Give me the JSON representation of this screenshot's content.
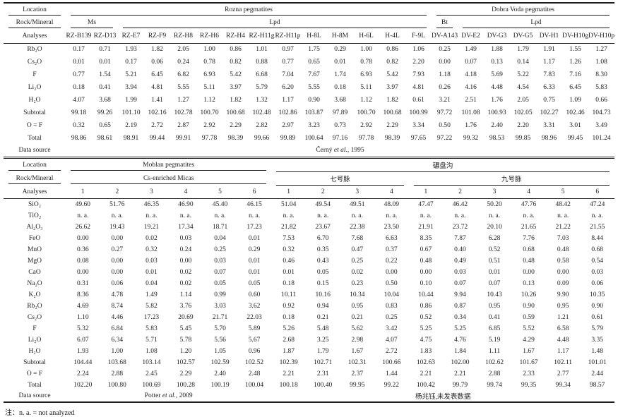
{
  "note": "注：n. a. = not analyzed",
  "table1": {
    "labels": {
      "location": "Location",
      "rock_mineral": "Rock/Mineral",
      "analyses": "Analyses"
    },
    "groups1": [
      {
        "label": "Rozna pegmatites",
        "span": 14
      },
      {
        "label": "Dobra Voda pegmatites",
        "span": 7
      }
    ],
    "groups2": [
      {
        "label": "Ms",
        "span": 2
      },
      {
        "label": "Lpd",
        "span": 12
      },
      {
        "label": "Bt",
        "span": 1
      },
      {
        "label": "Lpd",
        "span": 6
      }
    ],
    "columns": [
      "RZ-B139",
      "RZ-D13",
      "RZ-E7",
      "RZ-F9",
      "RZ-H8",
      "RZ-H6",
      "RZ-H4",
      "RZ-H11g",
      "RZ-H11p",
      "H-8L",
      "H-8M",
      "H-6L",
      "H-4L",
      "F-9L",
      "DV-A143",
      "DV-E2",
      "DV-G3",
      "DV-G5",
      "DV-H1",
      "DV-H10g",
      "DV-H10p"
    ],
    "rows": [
      {
        "label": "Rb₂O",
        "values": [
          "0.17",
          "0.71",
          "1.93",
          "1.82",
          "2.05",
          "1.00",
          "0.86",
          "1.01",
          "0.97",
          "1.75",
          "0.29",
          "1.00",
          "0.86",
          "1.06",
          "0.25",
          "1.49",
          "1.88",
          "1.79",
          "1.91",
          "1.55",
          "1.27"
        ]
      },
      {
        "label": "Cs₂O",
        "values": [
          "0.01",
          "0.01",
          "0.17",
          "0.06",
          "0.24",
          "0.78",
          "0.82",
          "0.88",
          "0.77",
          "0.65",
          "0.01",
          "0.78",
          "0.82",
          "2.20",
          "0.00",
          "0.07",
          "0.13",
          "0.14",
          "1.17",
          "1.26",
          "1.08"
        ]
      },
      {
        "label": "F",
        "values": [
          "0.77",
          "1.54",
          "5.21",
          "6.45",
          "6.82",
          "6.93",
          "5.42",
          "6.68",
          "7.04",
          "7.67",
          "1.74",
          "6.93",
          "5.42",
          "7.93",
          "1.18",
          "4.18",
          "5.69",
          "5.22",
          "7.83",
          "7.16",
          "8.30"
        ]
      },
      {
        "label": "Li₂O",
        "values": [
          "0.18",
          "0.41",
          "3.94",
          "4.81",
          "5.55",
          "5.11",
          "3.97",
          "5.79",
          "6.20",
          "5.55",
          "0.18",
          "5.11",
          "3.97",
          "4.81",
          "0.26",
          "4.16",
          "4.48",
          "4.54",
          "6.33",
          "6.45",
          "5.83"
        ]
      },
      {
        "label": "H₂O",
        "values": [
          "4.07",
          "3.68",
          "1.99",
          "1.41",
          "1.27",
          "1.12",
          "1.82",
          "1.32",
          "1.17",
          "0.90",
          "3.68",
          "1.12",
          "1.82",
          "0.61",
          "3.21",
          "2.51",
          "1.76",
          "2.05",
          "0.75",
          "1.09",
          "0.66"
        ]
      },
      {
        "label": "Subtotal",
        "values": [
          "99.18",
          "99.26",
          "101.10",
          "102.16",
          "102.78",
          "100.70",
          "100.68",
          "102.48",
          "102.86",
          "103.87",
          "97.89",
          "100.70",
          "100.68",
          "100.99",
          "97.72",
          "101.08",
          "100.93",
          "102.05",
          "102.27",
          "102.46",
          "104.73"
        ]
      },
      {
        "label": "O = F",
        "values": [
          "0.32",
          "0.65",
          "2.19",
          "2.72",
          "2.87",
          "2.92",
          "2.29",
          "2.82",
          "2.97",
          "3.23",
          "0.73",
          "2.92",
          "2.29",
          "3.34",
          "0.50",
          "1.76",
          "2.40",
          "2.20",
          "3.31",
          "3.01",
          "3.49"
        ]
      },
      {
        "label": "Total",
        "values": [
          "98.86",
          "98.61",
          "98.91",
          "99.44",
          "99.91",
          "97.78",
          "98.39",
          "99.66",
          "99.89",
          "100.64",
          "97.16",
          "97.78",
          "98.39",
          "97.65",
          "97.22",
          "99.32",
          "98.53",
          "99.85",
          "98.96",
          "99.45",
          "101.24"
        ]
      }
    ],
    "data_source": {
      "label": "Data source",
      "entries": [
        {
          "span": 21,
          "pre": "Černý ",
          "italic": "et al.",
          "post": ", 1995"
        }
      ]
    }
  },
  "table2": {
    "labels": {
      "location": "Location",
      "rock_mineral": "Rock/Mineral",
      "analyses": "Analyses"
    },
    "groups1": [
      {
        "label": "Moblan pegmatites",
        "span": 6
      },
      {
        "label": "碾盘沟",
        "span": 10
      }
    ],
    "groups2": [
      {
        "label": "Cs-enriched Micas",
        "span": 6
      },
      {
        "label": "七号脉",
        "span": 4
      },
      {
        "label": "九号脉",
        "span": 6
      }
    ],
    "columns": [
      "1",
      "2",
      "3",
      "4",
      "5",
      "6",
      "1",
      "2",
      "3",
      "4",
      "1",
      "2",
      "3",
      "4",
      "5",
      "6"
    ],
    "rows": [
      {
        "label": "SiO₂",
        "values": [
          "49.60",
          "51.76",
          "46.35",
          "46.90",
          "45.40",
          "46.15",
          "51.04",
          "49.54",
          "49.51",
          "48.09",
          "47.47",
          "46.42",
          "50.20",
          "47.76",
          "48.42",
          "47.24"
        ]
      },
      {
        "label": "TiO₂",
        "values": [
          "n. a.",
          "n. a.",
          "n. a.",
          "n. a.",
          "n. a.",
          "n. a.",
          "n. a.",
          "n. a.",
          "n. a.",
          "n. a.",
          "n. a.",
          "n. a.",
          "n. a.",
          "n. a.",
          "n. a.",
          "n. a."
        ]
      },
      {
        "label": "Al₂O₃",
        "values": [
          "26.62",
          "19.43",
          "19.21",
          "17.34",
          "18.71",
          "17.23",
          "21.82",
          "23.67",
          "22.38",
          "23.50",
          "21.91",
          "23.72",
          "20.10",
          "21.65",
          "21.22",
          "21.55"
        ]
      },
      {
        "label": "FeO",
        "values": [
          "0.00",
          "0.00",
          "0.02",
          "0.03",
          "0.04",
          "0.01",
          "7.53",
          "6.70",
          "7.68",
          "6.63",
          "8.35",
          "7.87",
          "6.28",
          "7.76",
          "7.03",
          "8.44"
        ]
      },
      {
        "label": "MnO",
        "values": [
          "0.36",
          "0.27",
          "0.32",
          "0.24",
          "0.25",
          "0.29",
          "0.32",
          "0.35",
          "0.47",
          "0.37",
          "0.67",
          "0.40",
          "0.52",
          "0.68",
          "0.48",
          "0.68"
        ]
      },
      {
        "label": "MgO",
        "values": [
          "0.08",
          "0.00",
          "0.03",
          "0.00",
          "0.03",
          "0.01",
          "0.46",
          "0.43",
          "0.25",
          "0.22",
          "0.48",
          "0.49",
          "0.51",
          "0.48",
          "0.58",
          "0.54"
        ]
      },
      {
        "label": "CaO",
        "values": [
          "0.00",
          "0.00",
          "0.01",
          "0.02",
          "0.07",
          "0.01",
          "0.01",
          "0.05",
          "0.02",
          "0.00",
          "0.00",
          "0.03",
          "0.01",
          "0.00",
          "0.00",
          "0.03"
        ]
      },
      {
        "label": "Na₂O",
        "values": [
          "0.31",
          "0.06",
          "0.04",
          "0.02",
          "0.05",
          "0.05",
          "0.18",
          "0.15",
          "0.23",
          "0.50",
          "0.10",
          "0.07",
          "0.07",
          "0.13",
          "0.09",
          "0.06"
        ]
      },
      {
        "label": "K₂O",
        "values": [
          "8.36",
          "4.78",
          "1.49",
          "1.14",
          "0.99",
          "0.60",
          "10.11",
          "10.16",
          "10.34",
          "10.04",
          "10.44",
          "9.94",
          "10.43",
          "10.26",
          "9.90",
          "10.35"
        ]
      },
      {
        "label": "Rb₂O",
        "values": [
          "4.69",
          "8.74",
          "5.82",
          "3.76",
          "3.03",
          "3.62",
          "0.92",
          "0.94",
          "0.95",
          "0.83",
          "0.86",
          "0.87",
          "0.95",
          "0.90",
          "0.95",
          "0.90"
        ]
      },
      {
        "label": "Cs₂O",
        "values": [
          "1.10",
          "4.46",
          "17.23",
          "20.69",
          "21.71",
          "22.03",
          "0.18",
          "0.21",
          "0.21",
          "0.25",
          "0.52",
          "0.34",
          "0.41",
          "0.59",
          "1.21",
          "0.61"
        ]
      },
      {
        "label": "F",
        "values": [
          "5.32",
          "6.84",
          "5.83",
          "5.45",
          "5.70",
          "5.89",
          "5.26",
          "5.48",
          "5.62",
          "3.42",
          "5.25",
          "5.25",
          "6.85",
          "5.52",
          "6.58",
          "5.79"
        ]
      },
      {
        "label": "Li₂O",
        "values": [
          "6.07",
          "6.34",
          "5.71",
          "5.78",
          "5.56",
          "5.67",
          "2.68",
          "3.25",
          "2.98",
          "4.07",
          "4.75",
          "4.76",
          "5.19",
          "4.29",
          "4.48",
          "3.35"
        ]
      },
      {
        "label": "H₂O",
        "values": [
          "1.93",
          "1.00",
          "1.08",
          "1.20",
          "1.05",
          "0.96",
          "1.87",
          "1.79",
          "1.67",
          "2.72",
          "1.83",
          "1.84",
          "1.11",
          "1.67",
          "1.17",
          "1.48"
        ]
      },
      {
        "label": "Subtotal",
        "values": [
          "104.44",
          "103.68",
          "103.14",
          "102.57",
          "102.59",
          "102.52",
          "102.39",
          "102.71",
          "102.31",
          "100.66",
          "102.63",
          "102.00",
          "102.62",
          "101.67",
          "102.11",
          "101.01"
        ]
      },
      {
        "label": "O = F",
        "values": [
          "2.24",
          "2.88",
          "2.45",
          "2.29",
          "2.40",
          "2.48",
          "2.21",
          "2.31",
          "2.37",
          "1.44",
          "2.21",
          "2.21",
          "2.88",
          "2.33",
          "2.77",
          "2.44"
        ]
      },
      {
        "label": "Total",
        "values": [
          "102.20",
          "100.80",
          "100.69",
          "100.28",
          "100.19",
          "100.04",
          "100.18",
          "100.40",
          "99.95",
          "99.22",
          "100.42",
          "99.79",
          "99.74",
          "99.35",
          "99.34",
          "98.57"
        ]
      }
    ],
    "data_source": {
      "label": "Data source",
      "entries": [
        {
          "span": 6,
          "pre": "Potter ",
          "italic": "et al.",
          "post": ", 2009"
        },
        {
          "span": 10,
          "text": "杨兆钰,未发表数据"
        }
      ]
    }
  }
}
